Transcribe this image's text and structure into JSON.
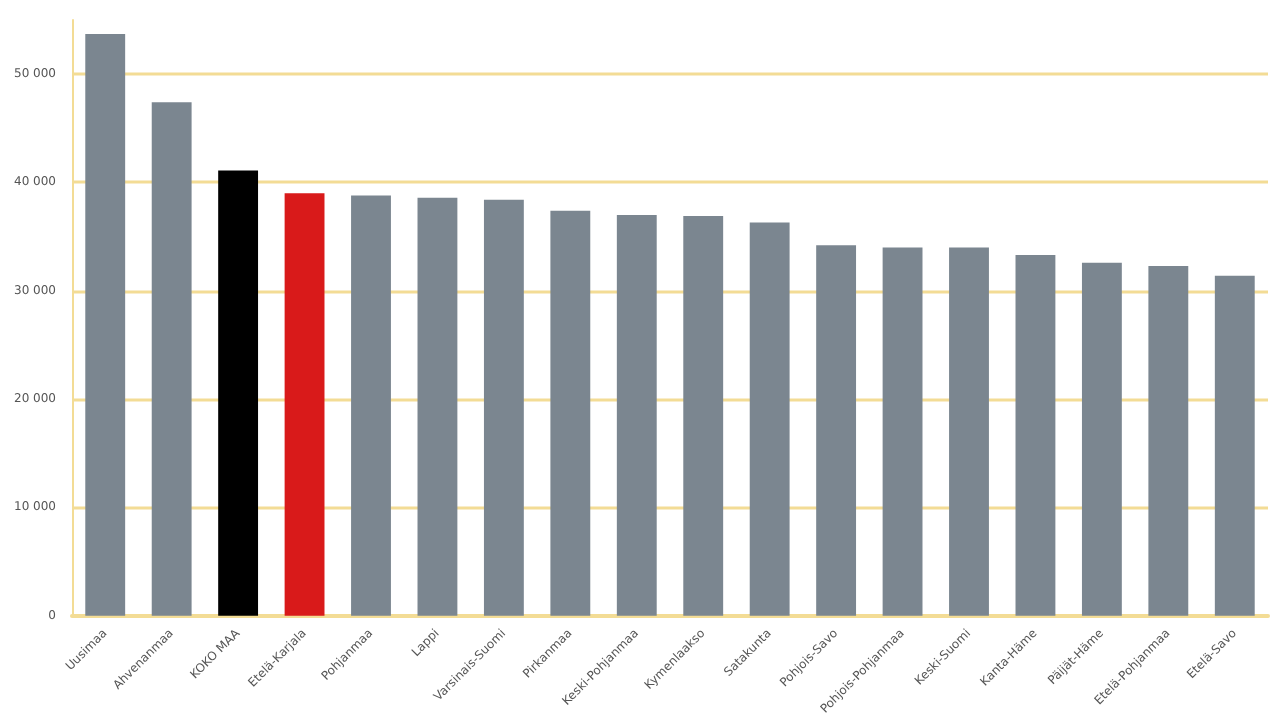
{
  "chart_data": {
    "type": "bar",
    "categories": [
      "Uusimaa",
      "Ahvenanmaa",
      "KOKO MAA",
      "Etelä-Karjala",
      "Pohjanmaa",
      "Lappi",
      "Varsinais-Suomi",
      "Pirkanmaa",
      "Keski-Pohjanmaa",
      "Kymenlaakso",
      "Satakunta",
      "Pohjois-Savo",
      "Pohjois-Pohjanmaa",
      "Keski-Suomi",
      "Kanta-Häme",
      "Päijät-Häme",
      "Etelä-Pohjanmaa",
      "Etelä-Savo"
    ],
    "values": [
      53700,
      47400,
      41100,
      39000,
      38800,
      38600,
      38400,
      37400,
      37000,
      36900,
      36300,
      34200,
      34000,
      34000,
      33300,
      32600,
      32300,
      31400
    ],
    "colors": [
      "#7b8690",
      "#7b8690",
      "#000000",
      "#d91a1a",
      "#7b8690",
      "#7b8690",
      "#7b8690",
      "#7b8690",
      "#7b8690",
      "#7b8690",
      "#7b8690",
      "#7b8690",
      "#7b8690",
      "#7b8690",
      "#7b8690",
      "#7b8690",
      "#7b8690",
      "#7b8690"
    ],
    "ylim": [
      0,
      55000
    ],
    "yticks": [
      0,
      {
        "value": 10000,
        "label": "10 000"
      },
      {
        "value": 20000,
        "label": "20 000"
      },
      {
        "value": 30000,
        "label": "30 000"
      },
      {
        "value": 40000,
        "label": "40 000"
      },
      {
        "value": 50000,
        "label": "50 000"
      }
    ],
    "grid": "y"
  }
}
